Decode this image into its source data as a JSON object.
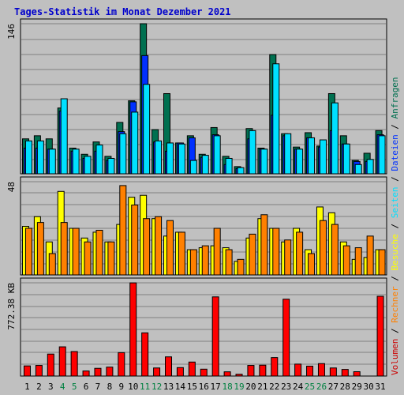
{
  "chart_data": {
    "type": "bar",
    "title": "Tages-Statistik im Monat Dezember 2021",
    "categories": [
      "1",
      "2",
      "3",
      "4",
      "5",
      "6",
      "7",
      "8",
      "9",
      "10",
      "11",
      "12",
      "13",
      "14",
      "15",
      "16",
      "17",
      "18",
      "19",
      "20",
      "21",
      "22",
      "23",
      "24",
      "25",
      "26",
      "27",
      "28",
      "29",
      "30",
      "31"
    ],
    "weekend_days": [
      "4",
      "5",
      "11",
      "12",
      "18",
      "19",
      "25",
      "26"
    ],
    "panels": {
      "top": {
        "ymax": 146,
        "ytick_label": "146",
        "series": [
          {
            "name": "Anfragen",
            "color": "#007050",
            "values": [
              34,
              37,
              34,
              64,
              25,
              19,
              31,
              17,
              50,
              71,
              146,
              43,
              78,
              30,
              37,
              19,
              45,
              17,
              7,
              44,
              25,
              116,
              39,
              26,
              40,
              27,
              78,
              37,
              13,
              20,
              42
            ]
          },
          {
            "name": "Dateien",
            "color": "#0030ff",
            "values": [
              25,
              25,
              24,
              61,
              22,
              15,
              22,
              13,
              41,
              70,
              115,
              31,
              22,
              30,
              35,
              16,
              38,
              9,
              5,
              34,
              24,
              57,
              37,
              24,
              35,
              26,
              42,
              29,
              12,
              12,
              38
            ]
          },
          {
            "name": "Seiten",
            "color": "#00e0ff",
            "values": [
              32,
              32,
              24,
              73,
              24,
              17,
              28,
              15,
              39,
              60,
              87,
              32,
              30,
              29,
              13,
              18,
              37,
              15,
              6,
              42,
              24,
              107,
              39,
              24,
              35,
              33,
              69,
              29,
              9,
              14,
              37
            ]
          }
        ]
      },
      "middle": {
        "ymax": 48,
        "ytick_label": "48",
        "series": [
          {
            "name": "Besuche",
            "color": "#ffff00",
            "values": [
              25,
              30,
              17,
              43,
              24,
              19,
              22,
              17,
              26,
              40,
              41,
              29,
              20,
              22,
              13,
              14,
              15,
              14,
              7,
              19,
              29,
              24,
              17,
              24,
              13,
              35,
              32,
              17,
              8,
              9,
              13
            ]
          },
          {
            "name": "Rechner",
            "color": "#ff8000",
            "values": [
              24,
              27,
              11,
              27,
              24,
              17,
              23,
              17,
              46,
              36,
              29,
              30,
              28,
              22,
              13,
              15,
              24,
              13,
              8,
              21,
              31,
              24,
              18,
              22,
              11,
              28,
              26,
              15,
              14,
              20,
              13
            ]
          }
        ]
      },
      "bottom": {
        "ymax": 772.38,
        "ytick_label": "772.38 KB",
        "series": [
          {
            "name": "Volumen",
            "color": "#ff0000",
            "values": [
              84,
              88,
              182,
              242,
              203,
              42,
              64,
              74,
              194,
              772,
              358,
              67,
              159,
              70,
              116,
              57,
              656,
              35,
              15,
              88,
              90,
              153,
              637,
              99,
              82,
              103,
              67,
              55,
              36,
              0,
              661
            ]
          }
        ]
      }
    },
    "right_legend": [
      {
        "label": "Volumen",
        "color": "#cc0000"
      },
      {
        "label": " / ",
        "color": "#000000"
      },
      {
        "label": "Rechner",
        "color": "#ff8000"
      },
      {
        "label": " / ",
        "color": "#000000"
      },
      {
        "label": "Besuche",
        "color": "#ffff00"
      },
      {
        "label": " / ",
        "color": "#000000"
      },
      {
        "label": "Seiten",
        "color": "#00e0ff"
      },
      {
        "label": " / ",
        "color": "#000000"
      },
      {
        "label": "Dateien",
        "color": "#0030ff"
      },
      {
        "label": " / ",
        "color": "#000000"
      },
      {
        "label": "Anfragen",
        "color": "#007050"
      }
    ],
    "colors": {
      "background": "#c0c0c0",
      "title": "#0000cc",
      "weekday_label": "#000000",
      "weekend_label": "#008040",
      "grid": "#808080"
    }
  }
}
